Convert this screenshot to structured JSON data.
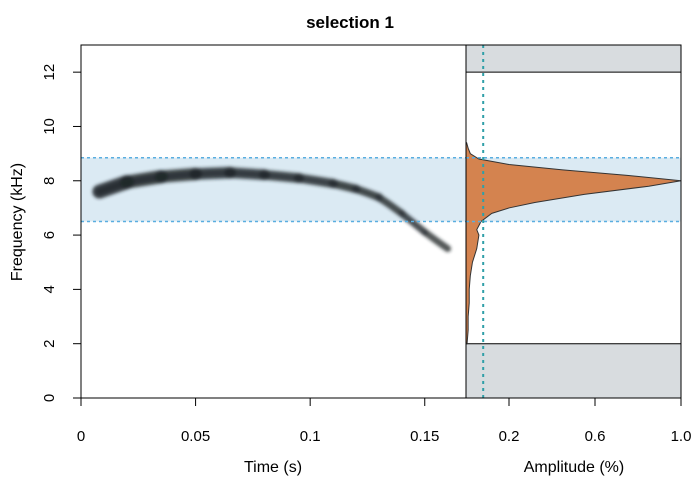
{
  "chart_data": {
    "type": "spectrogram",
    "title": "selection 1",
    "panels": {
      "spectrogram": {
        "xlabel": "Time (s)",
        "ylabel": "Frequency (kHz)",
        "xlim": [
          0,
          0.168
        ],
        "ylim": [
          0,
          13
        ],
        "x_ticks": [
          0,
          0.05,
          0.1,
          0.15
        ],
        "x_tick_labels": [
          "0",
          "0.05",
          "0.1",
          "0.15"
        ],
        "y_ticks": [
          0,
          2,
          4,
          6,
          8,
          10,
          12
        ],
        "y_tick_labels": [
          "0",
          "2",
          "4",
          "6",
          "8",
          "10",
          "12"
        ],
        "selection_band_khz": [
          6.5,
          8.85
        ],
        "call_contour": {
          "time_s": [
            0.008,
            0.02,
            0.035,
            0.05,
            0.065,
            0.08,
            0.095,
            0.11,
            0.12,
            0.13,
            0.14,
            0.15,
            0.16
          ],
          "freq_khz": [
            7.6,
            7.95,
            8.15,
            8.25,
            8.3,
            8.22,
            8.1,
            7.9,
            7.7,
            7.4,
            6.8,
            6.1,
            5.5
          ]
        }
      },
      "amplitude": {
        "xlabel": "Amplitude (%)",
        "xlim": [
          0,
          1.0
        ],
        "ylim": [
          0,
          13
        ],
        "x_ticks": [
          0.2,
          0.6,
          1.0
        ],
        "x_tick_labels": [
          "0.2",
          "0.6",
          "1.0"
        ],
        "bandpass_khz": [
          2,
          12
        ],
        "threshold": 0.08,
        "spectrum": {
          "freq_khz": [
            2.0,
            2.5,
            3.0,
            3.5,
            4.0,
            4.5,
            5.0,
            5.5,
            6.0,
            6.2,
            6.5,
            6.8,
            7.0,
            7.2,
            7.5,
            7.8,
            8.0,
            8.2,
            8.4,
            8.6,
            8.8,
            9.0,
            9.2,
            9.4
          ],
          "amplitude": [
            0.005,
            0.01,
            0.01,
            0.015,
            0.015,
            0.02,
            0.03,
            0.05,
            0.06,
            0.05,
            0.07,
            0.12,
            0.2,
            0.32,
            0.55,
            0.85,
            1.0,
            0.75,
            0.45,
            0.2,
            0.06,
            0.02,
            0.01,
            0.003
          ]
        }
      }
    }
  },
  "colors": {
    "spectrum_fill": "#d4834f",
    "band_fill": "#cfe3ef",
    "band_line": "#5aaee0",
    "threshold_line": "#2f9fa8",
    "outside_band": "#d8dcdf",
    "contour": "#1e2528"
  }
}
